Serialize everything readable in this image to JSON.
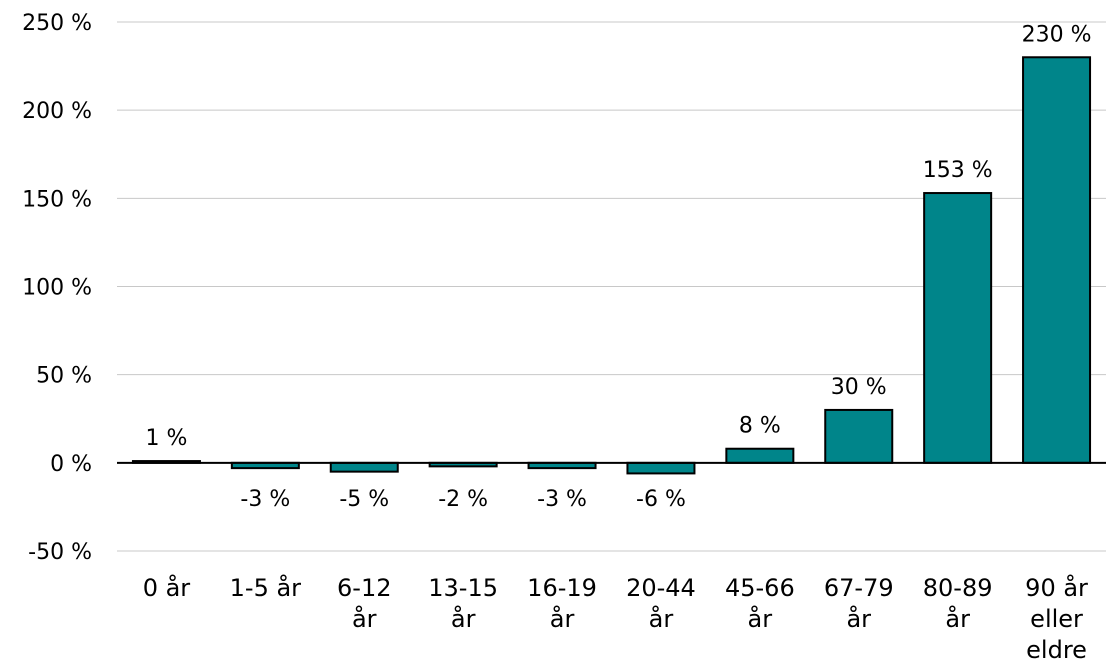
{
  "chart_data": {
    "type": "bar",
    "title": "",
    "xlabel": "",
    "ylabel": "",
    "categories": [
      [
        "0 år"
      ],
      [
        "1-5 år"
      ],
      [
        "6-12",
        "år"
      ],
      [
        "13-15",
        "år"
      ],
      [
        "16-19",
        "år"
      ],
      [
        "20-44",
        "år"
      ],
      [
        "45-66",
        "år"
      ],
      [
        "67-79",
        "år"
      ],
      [
        "80-89",
        "år"
      ],
      [
        "90 år",
        "eller",
        "eldre"
      ]
    ],
    "values": [
      1,
      -3,
      -5,
      -2,
      -3,
      -6,
      8,
      30,
      153,
      230
    ],
    "data_labels": [
      "1 %",
      "-3 %",
      "-5 %",
      "-2 %",
      "-3 %",
      "-6 %",
      "8 %",
      "30 %",
      "153 %",
      "230 %"
    ],
    "ylim": [
      -50,
      250
    ],
    "yticks": [
      250,
      200,
      150,
      100,
      50,
      0,
      -50
    ],
    "ytick_labels": [
      "250 %",
      "200 %",
      "150 %",
      "100 %",
      "50 %",
      "0 %",
      "-50 %"
    ],
    "grid": true,
    "legend": "none",
    "bar_color": "#00858A"
  }
}
